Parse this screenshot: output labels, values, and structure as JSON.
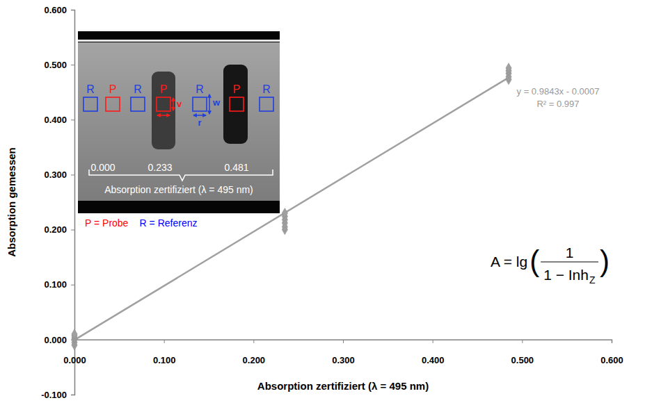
{
  "chart_data": {
    "type": "scatter",
    "x_label": "Absorption zertifiziert (λ = 495 nm)",
    "y_label": "Absorption gemessen",
    "xlim": [
      0,
      0.6
    ],
    "ylim": [
      -0.1,
      0.6
    ],
    "xticks": [
      {
        "value": 0,
        "label": "0.000"
      },
      {
        "value": 0.1,
        "label": "0.100"
      },
      {
        "value": 0.2,
        "label": "0.200"
      },
      {
        "value": 0.3,
        "label": "0.300"
      },
      {
        "value": 0.4,
        "label": "0.400"
      },
      {
        "value": 0.5,
        "label": "0.500"
      },
      {
        "value": 0.6,
        "label": "0.600"
      }
    ],
    "yticks": [
      {
        "value": -0.1,
        "label": "-0.100"
      },
      {
        "value": 0,
        "label": "0.000"
      },
      {
        "value": 0.1,
        "label": "0.100"
      },
      {
        "value": 0.2,
        "label": "0.200"
      },
      {
        "value": 0.3,
        "label": "0.300"
      },
      {
        "value": 0.4,
        "label": "0.400"
      },
      {
        "value": 0.5,
        "label": "0.500"
      },
      {
        "value": 0.6,
        "label": "0.600"
      }
    ],
    "grid": false,
    "series": [
      {
        "type": "scatter",
        "marker": "diamond",
        "color": "#a0a0a0",
        "x": [
          0,
          0,
          0,
          0,
          0,
          0,
          0.235,
          0.235,
          0.235,
          0.235,
          0.235,
          0.235,
          0.485,
          0.485,
          0.485,
          0.485,
          0.485
        ],
        "values": [
          -0.01,
          -0.005,
          0.0,
          0.003,
          0.007,
          0.01,
          0.2,
          0.205,
          0.212,
          0.218,
          0.224,
          0.23,
          0.473,
          0.478,
          0.484,
          0.489,
          0.494
        ]
      },
      {
        "type": "line",
        "line_style": "solid",
        "color": "#a0a0a0",
        "x": [
          0,
          0.485
        ],
        "values": [
          -0.0007,
          0.4767
        ]
      }
    ],
    "trendline_labels": [
      "y = 0.9843x - 0.0007",
      "R² = 0.997"
    ],
    "formula": {
      "left": "A = lg",
      "open": "(",
      "numerator": "1",
      "denominator": "1 − Inh",
      "subscript": "Z",
      "close": ")"
    },
    "inset": {
      "boxes": [
        {
          "label": "R",
          "color": "#1f3fe0"
        },
        {
          "label": "P",
          "color": "#ff1a1a"
        },
        {
          "label": "R",
          "color": "#1f3fe0"
        },
        {
          "label": "P",
          "color": "#ff1a1a"
        },
        {
          "label": "R",
          "color": "#1f3fe0"
        },
        {
          "label": "P",
          "color": "#ff1a1a"
        },
        {
          "label": "R",
          "color": "#1f3fe0"
        }
      ],
      "dimension_labels": [
        {
          "text": "v",
          "color": "#ff1a1a"
        },
        {
          "text": "w",
          "color": "#1f3fe0"
        },
        {
          "text": "r",
          "color": "#1f3fe0"
        }
      ],
      "certified_labels": [
        "0.000",
        "0.233",
        "0.481"
      ],
      "caption": "Absorption zertifiziert (λ = 495 nm)",
      "key": [
        {
          "text": "P = Probe",
          "color": "#ff0000"
        },
        {
          "text": "R = Referenz",
          "color": "#0000ff"
        }
      ]
    }
  }
}
